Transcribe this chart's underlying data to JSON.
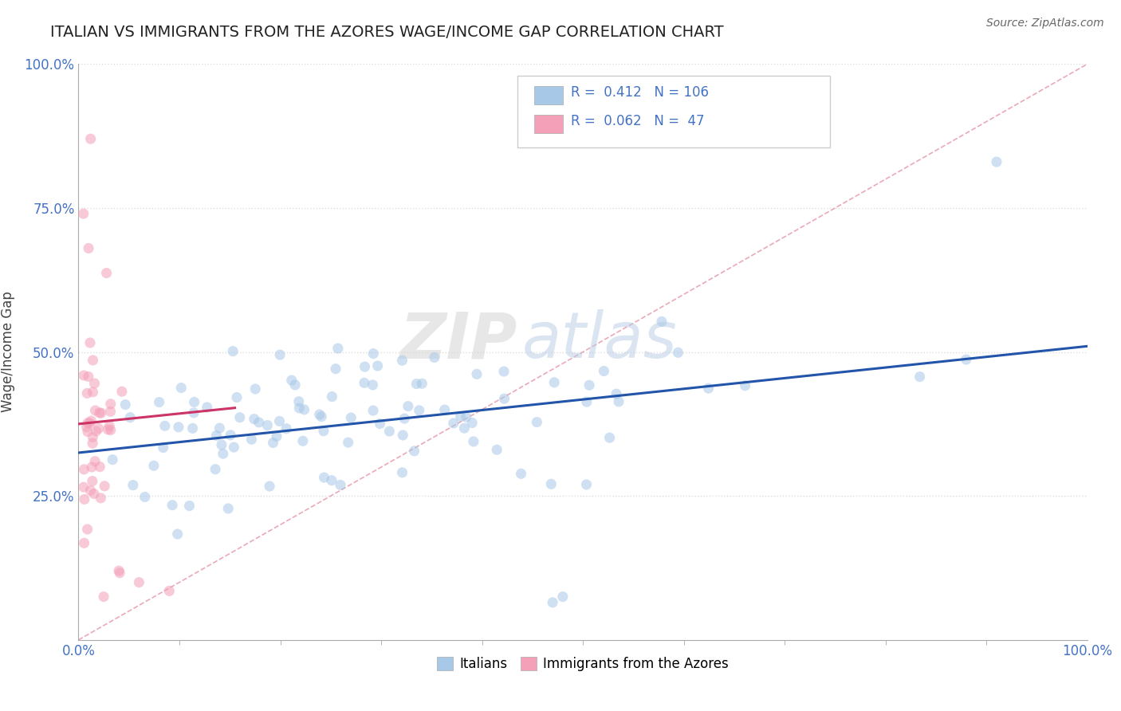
{
  "title": "ITALIAN VS IMMIGRANTS FROM THE AZORES WAGE/INCOME GAP CORRELATION CHART",
  "source": "Source: ZipAtlas.com",
  "ylabel": "Wage/Income Gap",
  "xlim": [
    0,
    1
  ],
  "ylim": [
    0,
    1
  ],
  "legend_R1": "0.412",
  "legend_N1": "106",
  "legend_R2": "0.062",
  "legend_N2": "47",
  "blue_scatter_color": "#a8c8e8",
  "pink_scatter_color": "#f4a0b8",
  "blue_line_color": "#2255aa",
  "pink_line_color": "#cc3366",
  "ref_line_color": "#e8a0b0",
  "title_color": "#222222",
  "axis_label_color": "#444444",
  "tick_color": "#4472c4",
  "watermark_zip": "ZIP",
  "watermark_atlas": "atlas",
  "background_color": "#ffffff",
  "grid_color": "#dddddd",
  "blue_intercept": 0.325,
  "blue_slope": 0.185,
  "pink_intercept": 0.375,
  "pink_slope": 0.18
}
